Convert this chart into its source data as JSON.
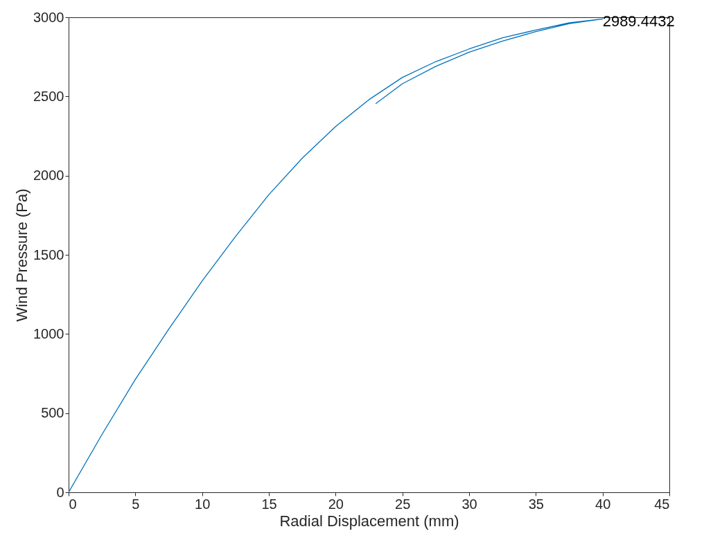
{
  "chart_data": {
    "type": "line",
    "xlabel": "Radial Displacement (mm)",
    "ylabel": "Wind Pressure (Pa)",
    "xlim": [
      0,
      45
    ],
    "ylim": [
      0,
      3000
    ],
    "xticks": [
      0,
      5,
      10,
      15,
      20,
      25,
      30,
      35,
      40,
      45
    ],
    "yticks": [
      0,
      500,
      1000,
      1500,
      2000,
      2500,
      3000
    ],
    "grid": false,
    "series": [
      {
        "color": "#0072bd",
        "x": [
          0,
          2.5,
          5,
          7.5,
          10,
          12.5,
          15,
          17.5,
          20,
          22.5,
          25,
          27.5,
          30,
          32.5,
          35,
          37.5,
          40,
          37.5,
          35,
          32.5,
          30,
          27.5,
          25,
          23
        ],
        "values": [
          0,
          365,
          713,
          1030,
          1334,
          1615,
          1880,
          2110,
          2310,
          2480,
          2620,
          2720,
          2800,
          2870,
          2920,
          2965,
          2989.4432,
          2960,
          2910,
          2850,
          2780,
          2690,
          2580,
          2454
        ]
      }
    ],
    "annotations": [
      {
        "text": "2989.4432",
        "x": 40,
        "y": 2989.4432
      }
    ]
  }
}
